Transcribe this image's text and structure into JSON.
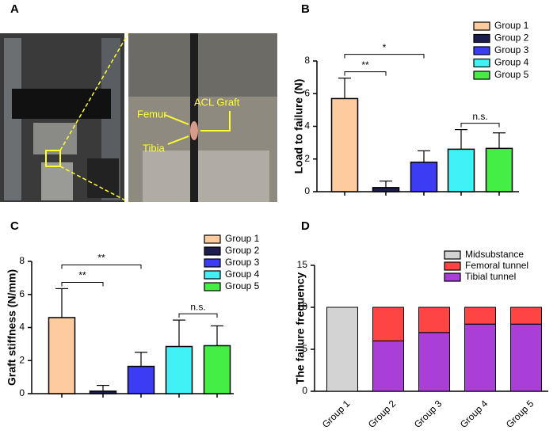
{
  "photo_panel": {
    "panel": "A",
    "labels": {
      "femur": "Femur",
      "graft": "ACL Graft",
      "tibia": "Tibia"
    }
  },
  "chart_data": [
    {
      "panel": "B",
      "type": "bar",
      "ylabel": "Load to failure (N)",
      "ylim": [
        0,
        8
      ],
      "yticks": [
        0,
        2,
        4,
        6,
        8
      ],
      "series": [
        {
          "name": "Group 1",
          "color": "#fdcb9e",
          "values": [
            5.7
          ],
          "errors": [
            1.25
          ]
        },
        {
          "name": "Group 2",
          "color": "#1c1c4f",
          "values": [
            0.25
          ],
          "errors": [
            0.4
          ]
        },
        {
          "name": "Group 3",
          "color": "#3c3cf5",
          "values": [
            1.8
          ],
          "errors": [
            0.7
          ]
        },
        {
          "name": "Group 4",
          "color": "#40f2f5",
          "values": [
            2.6
          ],
          "errors": [
            1.2
          ]
        },
        {
          "name": "Group 5",
          "color": "#44ee44",
          "values": [
            2.65
          ],
          "errors": [
            0.95
          ]
        }
      ],
      "annotations": [
        {
          "text": "**",
          "between": [
            "Group 1",
            "Group 2"
          ]
        },
        {
          "text": "*",
          "between": [
            "Group 1",
            "Group 3"
          ]
        },
        {
          "text": "n.s.",
          "between": [
            "Group 4",
            "Group 5"
          ]
        }
      ]
    },
    {
      "panel": "C",
      "type": "bar",
      "ylabel": "Graft stiffness (N/mm)",
      "ylim": [
        0,
        8
      ],
      "yticks": [
        0,
        2,
        4,
        6,
        8
      ],
      "series": [
        {
          "name": "Group 1",
          "color": "#fdcb9e",
          "values": [
            4.6
          ],
          "errors": [
            1.75
          ]
        },
        {
          "name": "Group 2",
          "color": "#1c1c4f",
          "values": [
            0.15
          ],
          "errors": [
            0.35
          ]
        },
        {
          "name": "Group 3",
          "color": "#3c3cf5",
          "values": [
            1.65
          ],
          "errors": [
            0.85
          ]
        },
        {
          "name": "Group 4",
          "color": "#40f2f5",
          "values": [
            2.85
          ],
          "errors": [
            1.6
          ]
        },
        {
          "name": "Group 5",
          "color": "#44ee44",
          "values": [
            2.9
          ],
          "errors": [
            1.2
          ]
        }
      ],
      "annotations": [
        {
          "text": "**",
          "between": [
            "Group 1",
            "Group 2"
          ]
        },
        {
          "text": "**",
          "between": [
            "Group 1",
            "Group 3"
          ]
        },
        {
          "text": "n.s.",
          "between": [
            "Group 4",
            "Group 5"
          ]
        }
      ]
    },
    {
      "panel": "D",
      "type": "stacked_bar",
      "ylabel": "The failure frequency",
      "ylim": [
        0,
        15
      ],
      "yticks": [
        0,
        5,
        10,
        15
      ],
      "categories": [
        "Group 1",
        "Group 2",
        "Group 3",
        "Group 4",
        "Group 5"
      ],
      "series": [
        {
          "name": "Midsubstance",
          "color": "#d3d3d3",
          "values": [
            10,
            0,
            0,
            0,
            0
          ]
        },
        {
          "name": "Femoral tunnel",
          "color": "#ff4444",
          "values": [
            0,
            4,
            3,
            2,
            2
          ]
        },
        {
          "name": "Tibial tunnel",
          "color": "#a93fd6",
          "values": [
            0,
            6,
            7,
            8,
            8
          ]
        }
      ],
      "stack_order": [
        "Midsubstance",
        "Tibial tunnel",
        "Femoral tunnel"
      ]
    }
  ]
}
